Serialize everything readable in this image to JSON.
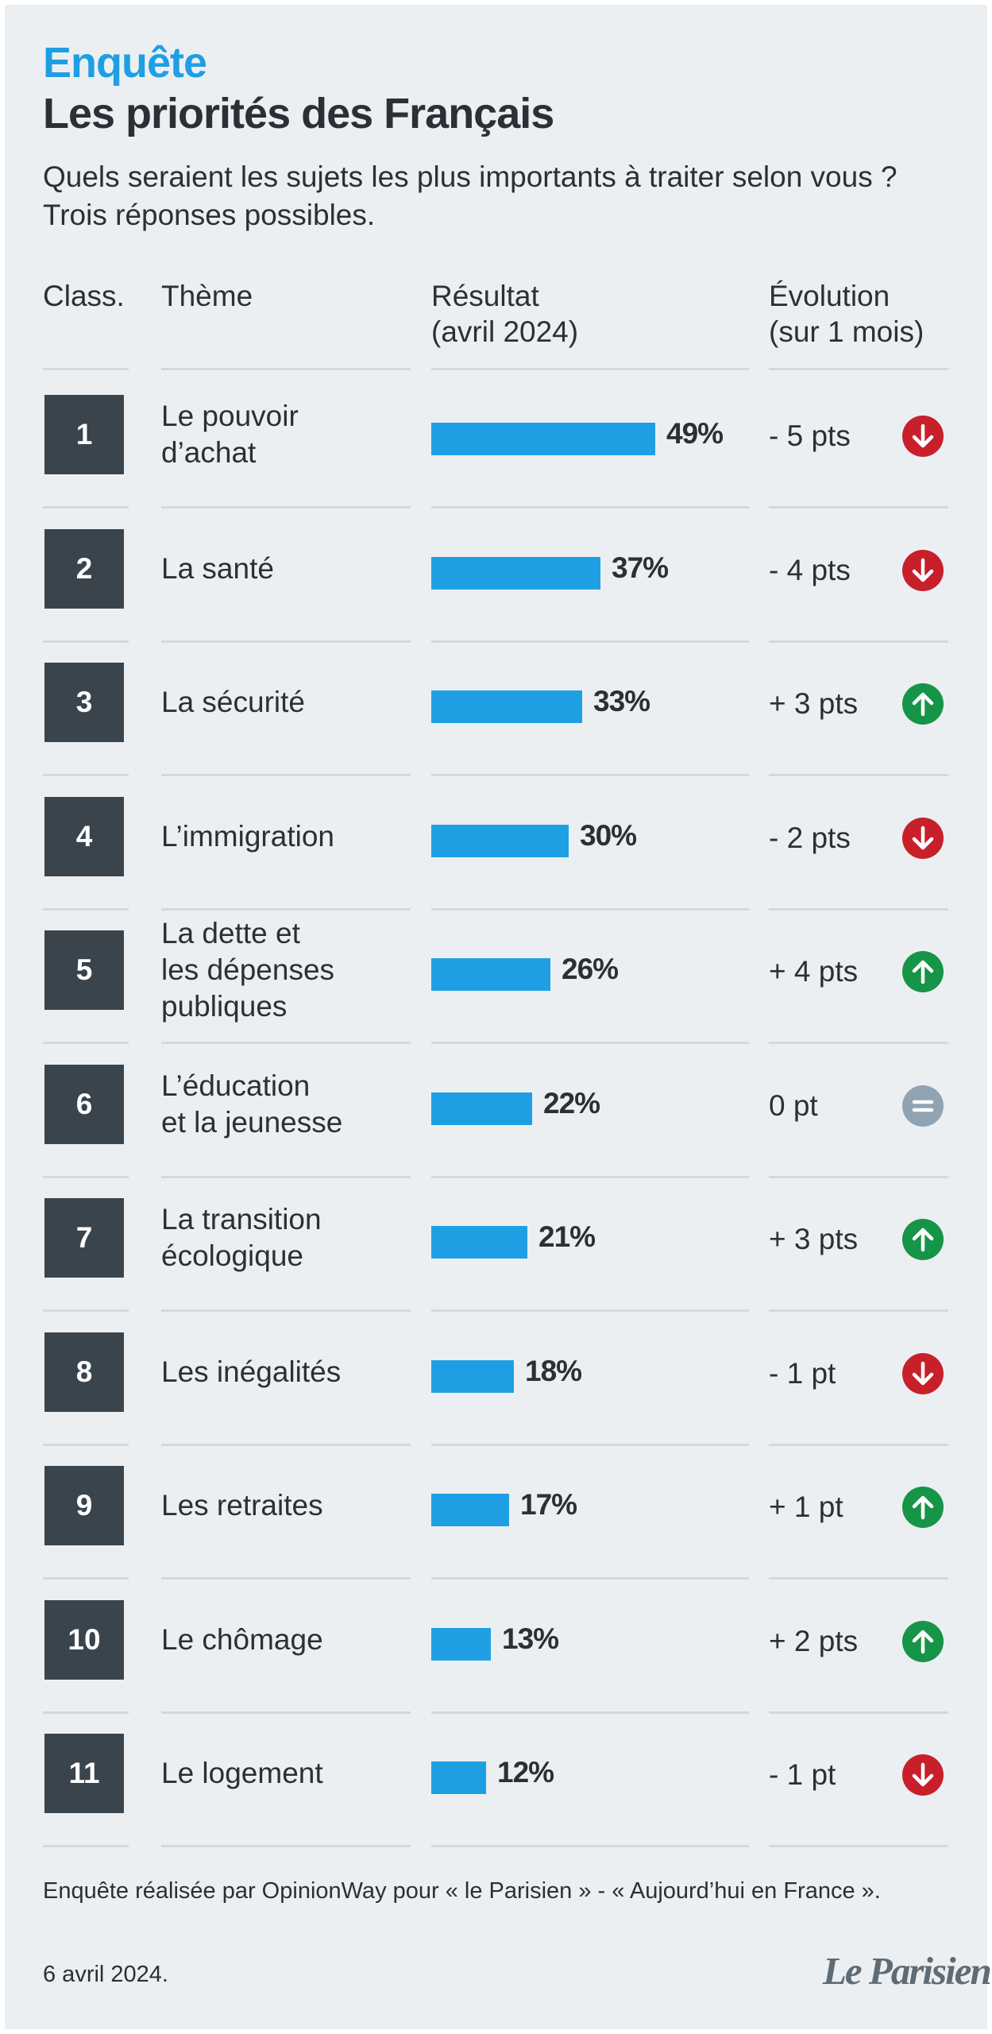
{
  "header": {
    "kicker": "Enquête",
    "title": "Les priorités des Français",
    "subtitle_line1": "Quels seraient les sujets les plus importants à traiter selon vous ?",
    "subtitle_line2": "Trois réponses possibles."
  },
  "columns": {
    "rank": "Class.",
    "theme": "Thème",
    "result": "Résultat\n(avril 2024)",
    "evolution": "Évolution\n(sur 1 mois)"
  },
  "colors": {
    "bar": "#1f9fe3",
    "down": "#c8202a",
    "up": "#169447",
    "neutral": "#8fa3b3"
  },
  "chart_data": {
    "type": "bar",
    "orientation": "horizontal",
    "title": "Les priorités des Français",
    "categories": [
      "Le pouvoir d’achat",
      "La santé",
      "La sécurité",
      "L’immigration",
      "La dette et les dépenses publiques",
      "L’éducation et la jeunesse",
      "La transition écologique",
      "Les inégalités",
      "Les retraites",
      "Le chômage",
      "Le logement"
    ],
    "values": [
      49,
      37,
      33,
      30,
      26,
      22,
      21,
      18,
      17,
      13,
      12
    ],
    "unit": "%",
    "xlim": [
      0,
      49
    ]
  },
  "rows": [
    {
      "rank": "1",
      "theme": "Le pouvoir\nd’achat",
      "value": 49,
      "pct": "49%",
      "evo": "- 5 pts",
      "trend": "down"
    },
    {
      "rank": "2",
      "theme": "La santé",
      "value": 37,
      "pct": "37%",
      "evo": "- 4 pts",
      "trend": "down"
    },
    {
      "rank": "3",
      "theme": "La sécurité",
      "value": 33,
      "pct": "33%",
      "evo": "+ 3 pts",
      "trend": "up"
    },
    {
      "rank": "4",
      "theme": "L’immigration",
      "value": 30,
      "pct": "30%",
      "evo": "- 2 pts",
      "trend": "down"
    },
    {
      "rank": "5",
      "theme": "La dette et\nles dépenses\npubliques",
      "value": 26,
      "pct": "26%",
      "evo": "+ 4 pts",
      "trend": "up"
    },
    {
      "rank": "6",
      "theme": "L’éducation\net la jeunesse",
      "value": 22,
      "pct": "22%",
      "evo": "0 pt",
      "trend": "equal"
    },
    {
      "rank": "7",
      "theme": "La transition\nécologique",
      "value": 21,
      "pct": "21%",
      "evo": "+ 3 pts",
      "trend": "up"
    },
    {
      "rank": "8",
      "theme": "Les inégalités",
      "value": 18,
      "pct": "18%",
      "evo": "- 1 pt",
      "trend": "down"
    },
    {
      "rank": "9",
      "theme": "Les retraites",
      "value": 17,
      "pct": "17%",
      "evo": "+ 1 pt",
      "trend": "up"
    },
    {
      "rank": "10",
      "theme": "Le chômage",
      "value": 13,
      "pct": "13%",
      "evo": "+ 2 pts",
      "trend": "up"
    },
    {
      "rank": "11",
      "theme": "Le logement",
      "value": 12,
      "pct": "12%",
      "evo": "- 1 pt",
      "trend": "down"
    }
  ],
  "footer": {
    "source": "Enquête réalisée par OpinionWay pour « le Parisien » - « Aujourd’hui en France ».",
    "date": "6 avril 2024.",
    "logo": "Le Parisien"
  }
}
